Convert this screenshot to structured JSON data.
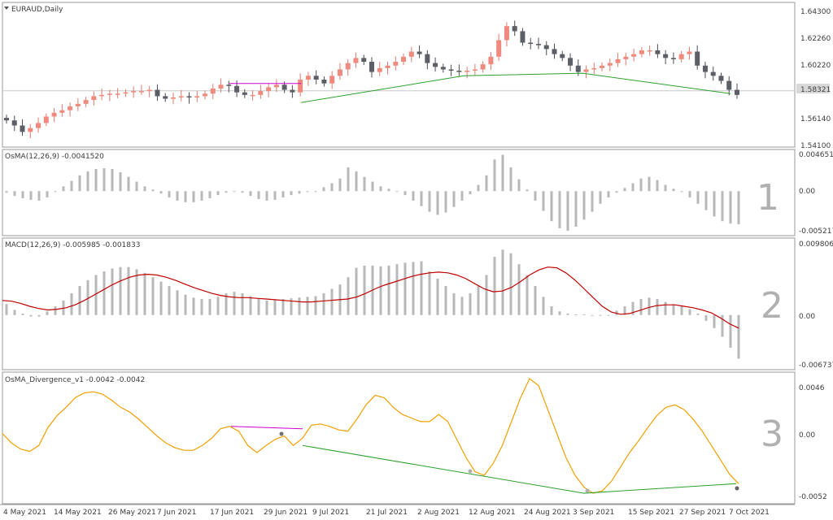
{
  "windows": [
    {
      "title": "EURAUD,Daily",
      "ticks": [
        "1.64300",
        "1.62260",
        "1.60220",
        "1.58321",
        "1.56140",
        "1.54100"
      ],
      "number": ""
    },
    {
      "title": "OsMA(12,26,9) -0.0041520",
      "ticks": [
        "0.004651",
        "0.00",
        "-0.005217"
      ],
      "number": "1"
    },
    {
      "title": "MACD(12,26,9) -0.005985 -0.001833",
      "ticks": [
        "0.009806",
        "0.00",
        "-0.006737"
      ],
      "number": "2"
    },
    {
      "title": "OsMA_Divergence_v1 -0.0042 -0.0042",
      "ticks": [
        "0.0046",
        "0.00",
        "-0.0052"
      ],
      "number": "3"
    }
  ],
  "current_price_label": "1.58321",
  "dates": [
    "4 May 2021",
    "14 May 2021",
    "26 May 2021",
    "7 Jun 2021",
    "17 Jun 2021",
    "29 Jun 2021",
    "9 Jul 2021",
    "21 Jul 2021",
    "2 Aug 2021",
    "12 Aug 2021",
    "24 Aug 2021",
    "3 Sep 2021",
    "15 Sep 2021",
    "27 Sep 2021",
    "7 Oct 2021"
  ],
  "chart_data": [
    {
      "type": "candlestick",
      "symbol": "EURAUD",
      "timeframe": "Daily",
      "ylim": [
        1.541,
        1.643
      ],
      "current_price": 1.58321,
      "close_path": [
        1.56,
        1.556,
        1.551,
        1.554,
        1.558,
        1.563,
        1.566,
        1.568,
        1.571,
        1.573,
        1.576,
        1.579,
        1.58,
        1.581,
        1.581,
        1.582,
        1.583,
        1.583,
        1.584,
        1.579,
        1.577,
        1.578,
        1.579,
        1.578,
        1.579,
        1.581,
        1.585,
        1.588,
        1.587,
        1.582,
        1.58,
        1.58,
        1.583,
        1.586,
        1.588,
        1.584,
        1.582,
        1.592,
        1.595,
        1.592,
        1.589,
        1.595,
        1.6,
        1.605,
        1.609,
        1.606,
        1.598,
        1.601,
        1.603,
        1.606,
        1.61,
        1.614,
        1.612,
        1.605,
        1.602,
        1.6,
        1.599,
        1.598,
        1.599,
        1.6,
        1.604,
        1.61,
        1.623,
        1.634,
        1.63,
        1.621,
        1.62,
        1.619,
        1.616,
        1.612,
        1.609,
        1.603,
        1.598,
        1.6,
        1.601,
        1.603,
        1.605,
        1.608,
        1.61,
        1.612,
        1.615,
        1.615,
        1.612,
        1.609,
        1.608,
        1.612,
        1.614,
        1.603,
        1.598,
        1.595,
        1.591,
        1.584,
        1.58
      ],
      "trendlines": [
        {
          "color": "#2ca02c",
          "points": [
            [
              "29 Jun 2021",
              1.574
            ],
            [
              "12 Aug 2021",
              1.595
            ],
            [
              "3 Sep 2021",
              1.597
            ],
            [
              "7 Oct 2021",
              1.581
            ]
          ]
        },
        {
          "color": "#cc00cc",
          "points": [
            [
              "17 Jun 2021",
              1.589
            ],
            [
              "29 Jun 2021",
              1.589
            ]
          ]
        }
      ]
    },
    {
      "type": "bar",
      "title": "OsMA(12,26,9) -0.0041520",
      "ylim": [
        -0.005217,
        0.004651
      ],
      "values": [
        -0.0002,
        -0.0006,
        -0.0009,
        -0.0011,
        -0.0012,
        -0.0008,
        -0.0001,
        0.0006,
        0.0013,
        0.002,
        0.0025,
        0.0028,
        0.0029,
        0.0028,
        0.0024,
        0.0018,
        0.0012,
        0.0006,
        0.0002,
        -0.0003,
        -0.0008,
        -0.0012,
        -0.0014,
        -0.0014,
        -0.0012,
        -0.0009,
        -0.0005,
        -0.0002,
        0.0,
        -0.0002,
        -0.0006,
        -0.001,
        -0.0012,
        -0.0011,
        -0.0008,
        -0.0005,
        -0.0003,
        -0.0001,
        0.0,
        0.0005,
        0.001,
        0.0016,
        0.003,
        0.0025,
        0.0018,
        0.0012,
        0.0006,
        0.0003,
        0.0,
        -0.0005,
        -0.0012,
        -0.0019,
        -0.0026,
        -0.003,
        -0.0027,
        -0.002,
        -0.0012,
        -0.0004,
        0.0008,
        0.002,
        0.004,
        0.0046,
        0.003,
        0.0015,
        0.0002,
        -0.0012,
        -0.0025,
        -0.0038,
        -0.0047,
        -0.005,
        -0.0045,
        -0.0036,
        -0.0026,
        -0.0016,
        -0.0008,
        -0.0002,
        0.0004,
        0.001,
        0.0016,
        0.0018,
        0.0014,
        0.0008,
        0.0003,
        0.0,
        -0.0008,
        -0.0016,
        -0.0024,
        -0.0032,
        -0.0038,
        -0.0041,
        -0.0042
      ],
      "ticks": [
        0.004651,
        0,
        -0.005217
      ]
    },
    {
      "type": "bar+line",
      "title": "MACD(12,26,9) -0.005985 -0.001833",
      "ylim": [
        -0.006737,
        0.009806
      ],
      "macd": [
        0.0015,
        0.0007,
        0.0002,
        -0.0002,
        -0.0002,
        0.0005,
        0.0012,
        0.002,
        0.003,
        0.004,
        0.0048,
        0.0055,
        0.006,
        0.0064,
        0.0066,
        0.0066,
        0.0063,
        0.0058,
        0.0052,
        0.0046,
        0.004,
        0.0034,
        0.0028,
        0.0024,
        0.0022,
        0.0022,
        0.0025,
        0.003,
        0.0032,
        0.003,
        0.0026,
        0.0022,
        0.002,
        0.0021,
        0.0022,
        0.0023,
        0.0024,
        0.0025,
        0.0026,
        0.003,
        0.0036,
        0.0042,
        0.0052,
        0.0065,
        0.0068,
        0.0068,
        0.0067,
        0.0068,
        0.007,
        0.0072,
        0.0073,
        0.0074,
        0.006,
        0.005,
        0.004,
        0.003,
        0.0025,
        0.003,
        0.004,
        0.0055,
        0.008,
        0.009,
        0.0085,
        0.007,
        0.0055,
        0.004,
        0.0025,
        0.0012,
        0.0005,
        0.0002,
        0.0001,
        0.0001,
        0.0,
        -0.0001,
        0.0,
        0.0006,
        0.0012,
        0.0018,
        0.0022,
        0.0024,
        0.0022,
        0.0018,
        0.0015,
        0.0012,
        0.0008,
        0.0002,
        -0.0008,
        -0.0018,
        -0.003,
        -0.0045,
        -0.006
      ],
      "signal": [
        0.002,
        0.0019,
        0.0016,
        0.0012,
        0.0009,
        0.0007,
        0.0008,
        0.001,
        0.0014,
        0.002,
        0.0027,
        0.0034,
        0.0041,
        0.0047,
        0.0052,
        0.0055,
        0.0056,
        0.0055,
        0.0052,
        0.0048,
        0.0043,
        0.0038,
        0.0034,
        0.003,
        0.0027,
        0.0025,
        0.0024,
        0.0024,
        0.0023,
        0.0022,
        0.0021,
        0.002,
        0.0019,
        0.0018,
        0.0018,
        0.0019,
        0.002,
        0.0021,
        0.0022,
        0.0025,
        0.003,
        0.0036,
        0.0041,
        0.0045,
        0.0049,
        0.0053,
        0.0056,
        0.0058,
        0.0059,
        0.0058,
        0.0055,
        0.005,
        0.0043,
        0.0036,
        0.0032,
        0.0033,
        0.0038,
        0.0046,
        0.0055,
        0.0062,
        0.0066,
        0.0065,
        0.0058,
        0.0048,
        0.0036,
        0.0024,
        0.0012,
        0.0004,
        0.0001,
        0.0002,
        0.0006,
        0.001,
        0.0013,
        0.0014,
        0.0014,
        0.0012,
        0.001,
        0.0007,
        0.0003,
        -0.0004,
        -0.0012,
        -0.0018
      ],
      "ticks": [
        0.009806,
        0,
        -0.006737
      ]
    },
    {
      "type": "line",
      "title": "OsMA_Divergence_v1 -0.0042 -0.0042",
      "ylim": [
        -0.0052,
        0.0046
      ],
      "values": [
        0.0,
        -0.0008,
        -0.0013,
        -0.0015,
        -0.001,
        0.0005,
        0.0015,
        0.0022,
        0.003,
        0.0034,
        0.0035,
        0.0033,
        0.0028,
        0.0022,
        0.0018,
        0.0012,
        0.0005,
        -0.0002,
        -0.0008,
        -0.0012,
        -0.0014,
        -0.0014,
        -0.001,
        -0.0004,
        0.0004,
        0.0006,
        0.0002,
        -0.001,
        -0.0016,
        -0.001,
        -0.0005,
        -0.0002,
        -0.001,
        -0.0004,
        0.0007,
        0.0008,
        0.0006,
        0.0003,
        0.0002,
        0.0012,
        0.0024,
        0.0032,
        0.003,
        0.0022,
        0.0016,
        0.0013,
        0.001,
        0.001,
        0.0016,
        0.001,
        -0.0005,
        -0.002,
        -0.0032,
        -0.0035,
        -0.0025,
        -0.001,
        0.001,
        0.003,
        0.0046,
        0.004,
        0.002,
        0.0,
        -0.002,
        -0.0035,
        -0.0045,
        -0.005,
        -0.0048,
        -0.004,
        -0.0028,
        -0.0016,
        -0.0006,
        0.0005,
        0.0015,
        0.0022,
        0.0024,
        0.002,
        0.0012,
        0.0002,
        -0.001,
        -0.0022,
        -0.0034,
        -0.0042
      ],
      "divergence_lines": [
        {
          "color": "#cc00cc",
          "points": [
            [
              "17 Jun 2021",
              0.0006
            ],
            [
              "29 Jun 2021",
              0.0004
            ]
          ]
        },
        {
          "color": "#2ca02c",
          "points": [
            [
              "29 Jun 2021",
              -0.001
            ],
            [
              "3 Sep 2021",
              -0.005
            ],
            [
              "7 Oct 2021",
              -0.0042
            ]
          ]
        }
      ],
      "ticks": [
        0.0046,
        0,
        -0.0052
      ]
    }
  ]
}
